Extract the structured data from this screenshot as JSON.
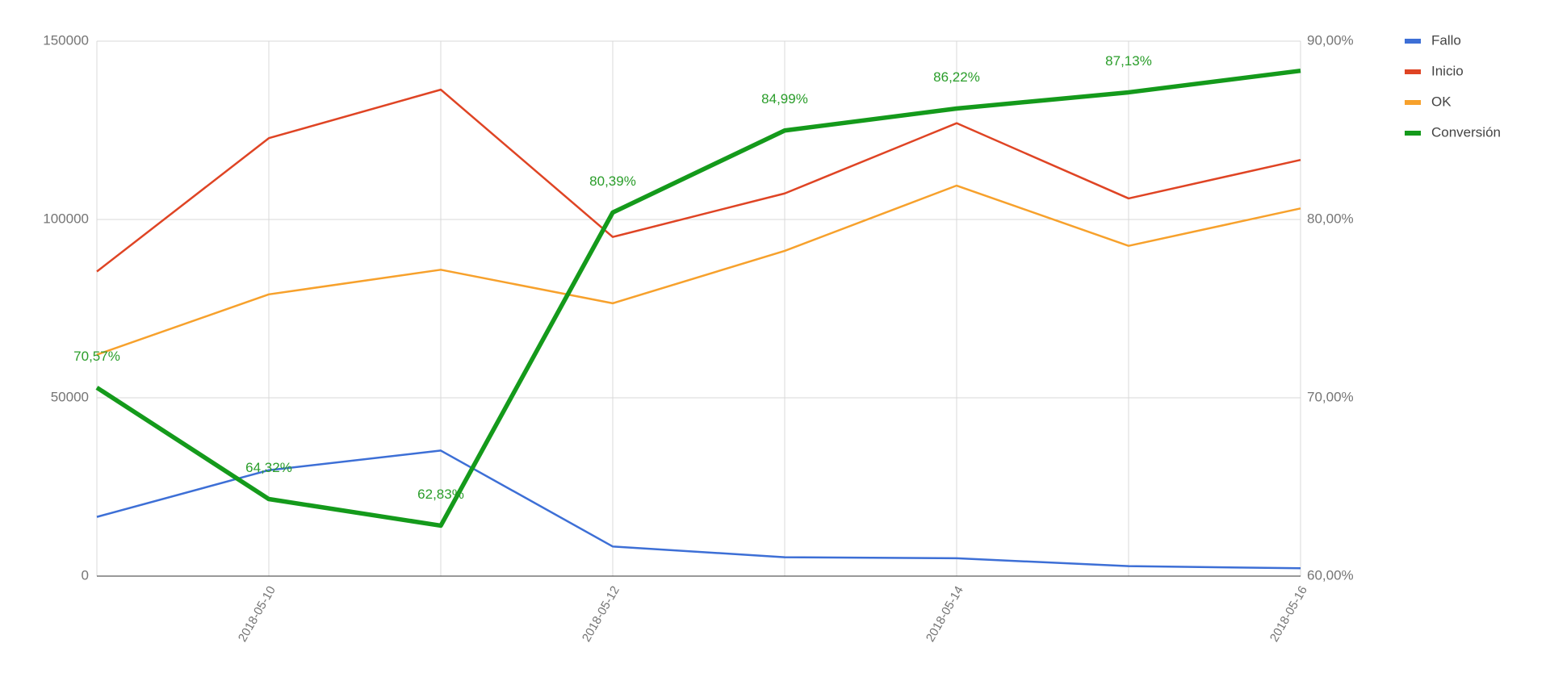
{
  "chart_data": {
    "type": "line",
    "categories": [
      null,
      "2018-05-10",
      null,
      "2018-05-12",
      null,
      "2018-05-14",
      null,
      "2018-05-16"
    ],
    "series": [
      {
        "name": "Fallo",
        "color": "#3d6fd6",
        "values": [
          16600,
          29700,
          35200,
          8300,
          5300,
          5000,
          2800,
          2200
        ]
      },
      {
        "name": "Inicio",
        "color": "#df4424",
        "values": [
          85400,
          122800,
          136400,
          95100,
          107300,
          127000,
          105900,
          116700
        ]
      },
      {
        "name": "OK",
        "color": "#f7a12c",
        "values": [
          62100,
          79000,
          85900,
          76500,
          91200,
          109500,
          92600,
          103100
        ]
      },
      {
        "name": "Conversión",
        "color": "#149a1b",
        "axis": "y2",
        "values": [
          70.57,
          64.32,
          62.83,
          80.39,
          84.99,
          86.22,
          87.13,
          88.34
        ],
        "value_labels": [
          "70,57%",
          "64,32%",
          "62,83%",
          "80,39%",
          "84,99%",
          "86,22%",
          "87,13%",
          null
        ]
      }
    ],
    "ylim": [
      0,
      150000
    ],
    "yticks": [
      0,
      50000,
      100000,
      150000
    ],
    "y2lim": [
      60,
      90
    ],
    "y2ticks": [
      {
        "value": 60,
        "label": "60,00%"
      },
      {
        "value": 70,
        "label": "70,00%"
      },
      {
        "value": 80,
        "label": "80,00%"
      },
      {
        "value": 90,
        "label": "90,00%"
      }
    ],
    "grid": true,
    "legend": "right"
  }
}
